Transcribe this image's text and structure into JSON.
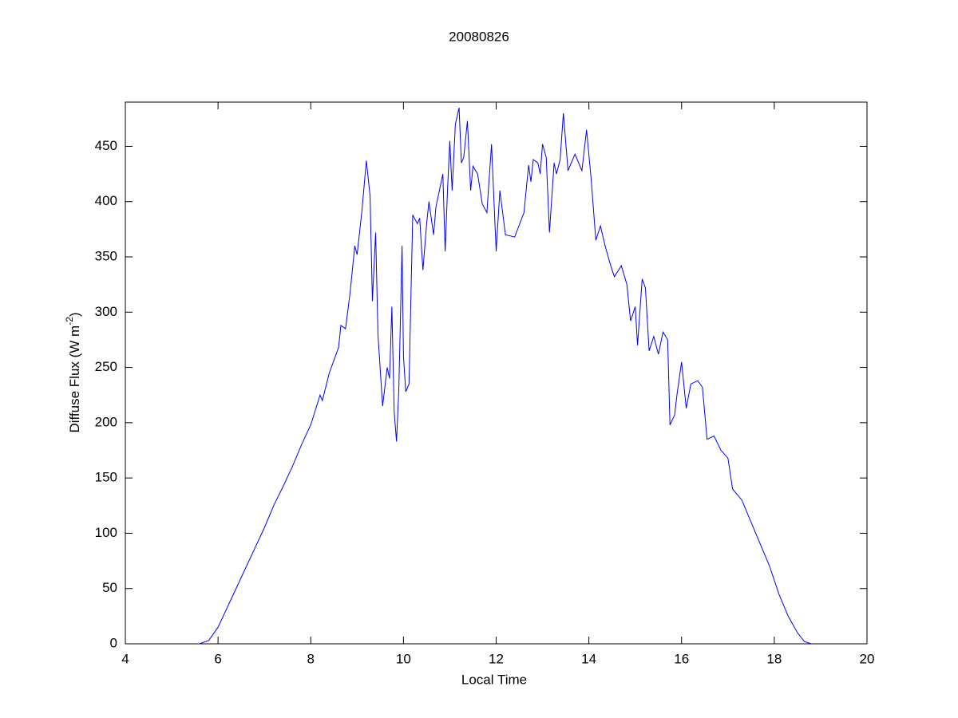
{
  "chart_data": {
    "type": "line",
    "title": "20080826",
    "xlabel": "Local Time",
    "ylabel": {
      "text": "Diffuse Flux (W m",
      "sup": "-2",
      "end": ")"
    },
    "color": "#0000ff",
    "xlim": [
      4,
      20
    ],
    "xticks": [
      4,
      6,
      8,
      10,
      12,
      14,
      16,
      18,
      20
    ],
    "ylim": [
      0,
      490
    ],
    "yticks": [
      0,
      50,
      100,
      150,
      200,
      250,
      300,
      350,
      400,
      450
    ],
    "grid": false,
    "x": [
      5.6,
      5.8,
      6.0,
      6.2,
      6.5,
      6.8,
      7.0,
      7.2,
      7.4,
      7.6,
      7.8,
      8.0,
      8.2,
      8.25,
      8.4,
      8.6,
      8.65,
      8.75,
      8.85,
      8.95,
      9.0,
      9.1,
      9.2,
      9.28,
      9.33,
      9.4,
      9.45,
      9.55,
      9.65,
      9.7,
      9.75,
      9.8,
      9.85,
      9.9,
      9.97,
      10.0,
      10.05,
      10.12,
      10.2,
      10.3,
      10.35,
      10.42,
      10.5,
      10.55,
      10.65,
      10.7,
      10.85,
      10.9,
      10.95,
      11.0,
      11.05,
      11.12,
      11.2,
      11.25,
      11.3,
      11.38,
      11.45,
      11.5,
      11.6,
      11.7,
      11.8,
      11.9,
      12.0,
      12.08,
      12.2,
      12.4,
      12.6,
      12.7,
      12.75,
      12.8,
      12.9,
      12.95,
      13.0,
      13.08,
      13.15,
      13.25,
      13.3,
      13.38,
      13.45,
      13.55,
      13.7,
      13.85,
      13.95,
      14.05,
      14.15,
      14.25,
      14.35,
      14.45,
      14.55,
      14.7,
      14.82,
      14.9,
      15.0,
      15.05,
      15.15,
      15.22,
      15.3,
      15.4,
      15.5,
      15.6,
      15.7,
      15.75,
      15.85,
      15.9,
      16.0,
      16.1,
      16.2,
      16.35,
      16.45,
      16.55,
      16.7,
      16.85,
      17.0,
      17.1,
      17.3,
      17.5,
      17.7,
      17.9,
      18.1,
      18.3,
      18.5,
      18.65,
      18.8
    ],
    "values": [
      0,
      3,
      15,
      33,
      60,
      87,
      105,
      125,
      142,
      160,
      180,
      198,
      225,
      220,
      245,
      268,
      288,
      285,
      318,
      360,
      352,
      390,
      437,
      405,
      310,
      372,
      280,
      215,
      250,
      240,
      305,
      210,
      183,
      230,
      360,
      260,
      228,
      235,
      388,
      380,
      385,
      338,
      380,
      400,
      370,
      395,
      425,
      355,
      410,
      455,
      410,
      470,
      485,
      435,
      440,
      473,
      410,
      432,
      425,
      398,
      390,
      452,
      355,
      410,
      370,
      368,
      390,
      433,
      418,
      438,
      435,
      425,
      452,
      440,
      372,
      435,
      425,
      438,
      480,
      428,
      443,
      428,
      465,
      420,
      365,
      378,
      360,
      345,
      332,
      342,
      325,
      292,
      305,
      270,
      330,
      322,
      265,
      278,
      262,
      282,
      275,
      198,
      207,
      225,
      255,
      213,
      235,
      238,
      232,
      185,
      188,
      175,
      168,
      140,
      130,
      110,
      90,
      70,
      45,
      25,
      10,
      2,
      0
    ]
  }
}
